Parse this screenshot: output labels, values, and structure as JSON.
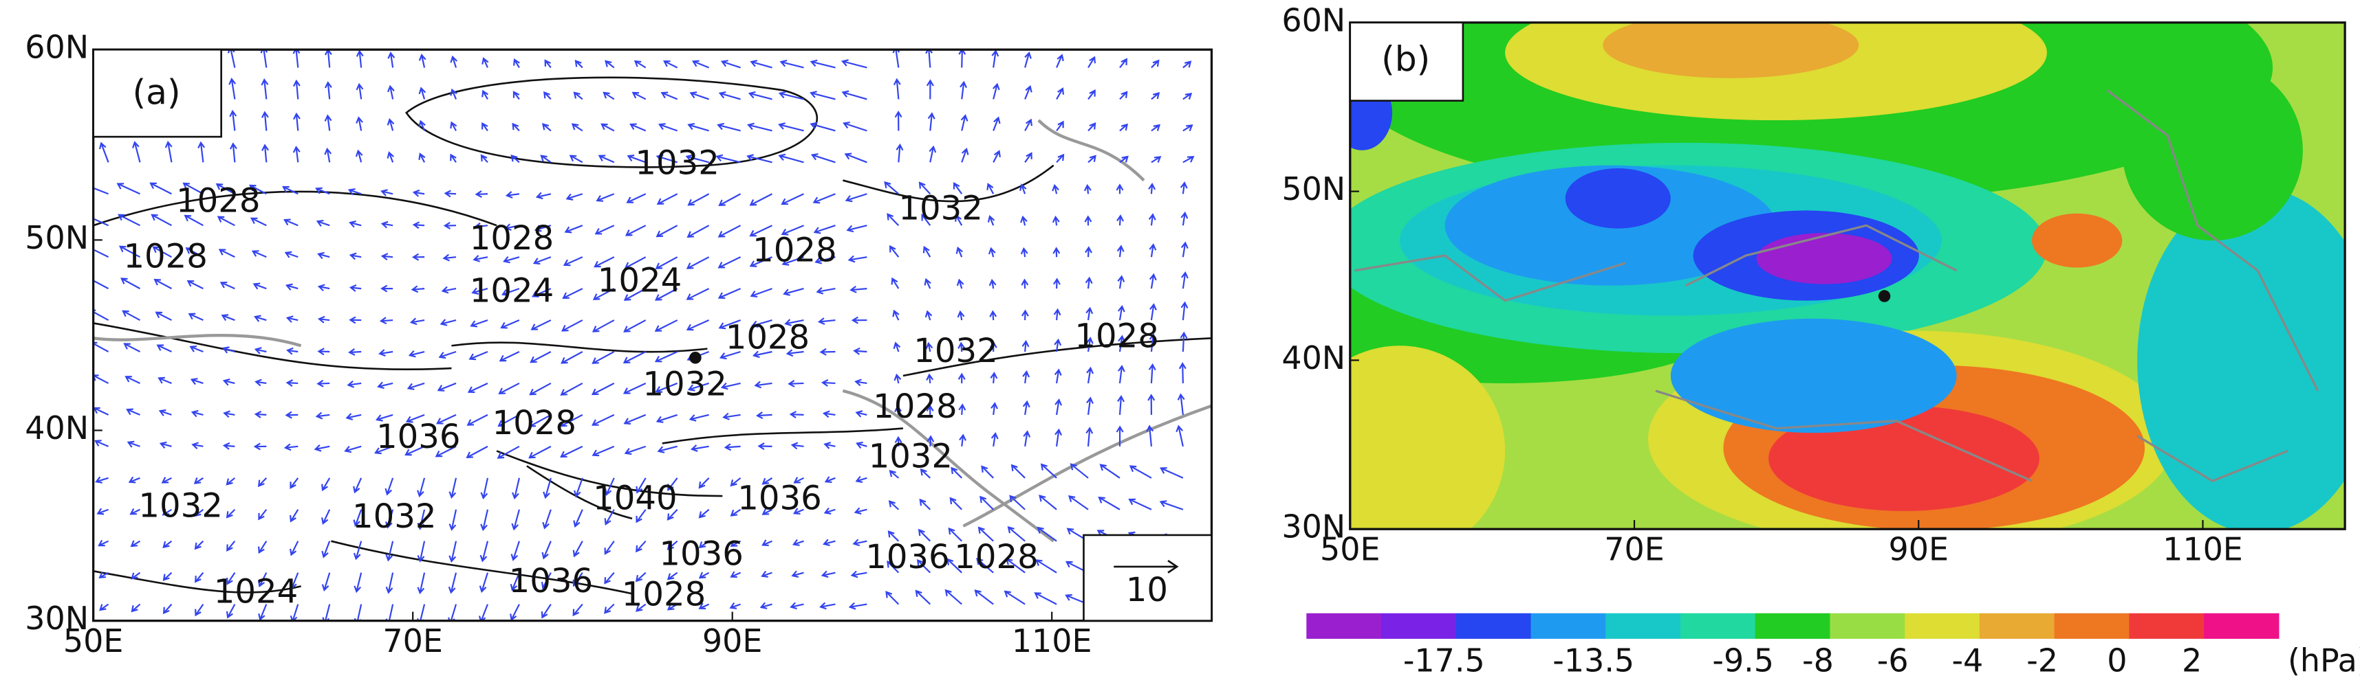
{
  "panels": [
    {
      "label": "(a)",
      "lon_range": [
        50,
        120
      ],
      "lat_range": [
        30,
        60
      ],
      "lon_ticks": [
        {
          "value": 50,
          "label": "50E"
        },
        {
          "value": 70,
          "label": "70E"
        },
        {
          "value": 90,
          "label": "90E"
        },
        {
          "value": 110,
          "label": "110E"
        }
      ],
      "lat_ticks": [
        {
          "value": 30,
          "label": "30N"
        },
        {
          "value": 40,
          "label": "40N"
        },
        {
          "value": 50,
          "label": "50N"
        },
        {
          "value": 60,
          "label": "60N"
        }
      ],
      "contour_labels": [
        1032,
        1028,
        1028,
        1028,
        1024,
        1024,
        1028,
        1032,
        1028,
        1032,
        1032,
        1028,
        1028,
        1028,
        1036,
        1032,
        1032,
        1032,
        1040,
        1036,
        1036,
        1036,
        1028,
        1036,
        1028,
        1024
      ],
      "reference_vector": 10
    },
    {
      "label": "(b)",
      "lon_range": [
        50,
        120
      ],
      "lat_range": [
        30,
        60
      ],
      "lon_ticks": [
        {
          "value": 50,
          "label": "50E"
        },
        {
          "value": 70,
          "label": "70E"
        },
        {
          "value": 90,
          "label": "90E"
        },
        {
          "value": 110,
          "label": "110E"
        }
      ],
      "lat_ticks": [
        {
          "value": 30,
          "label": "30N"
        },
        {
          "value": 40,
          "label": "40N"
        },
        {
          "value": 50,
          "label": "50N"
        },
        {
          "value": 60,
          "label": "60N"
        }
      ]
    }
  ],
  "colorbar": {
    "colors": [
      "#9a1fcf",
      "#7a22e6",
      "#2546f0",
      "#1e9bf0",
      "#18c8c8",
      "#20d8a0",
      "#22cc22",
      "#99dd44",
      "#dddd33",
      "#e8aa33",
      "#ee7722",
      "#f03a3a",
      "#ee1188"
    ],
    "ticks": [
      -17.5,
      -13.5,
      -9.5,
      -8,
      -6,
      -4,
      -2,
      0,
      2
    ],
    "unit": "(hPa)"
  }
}
